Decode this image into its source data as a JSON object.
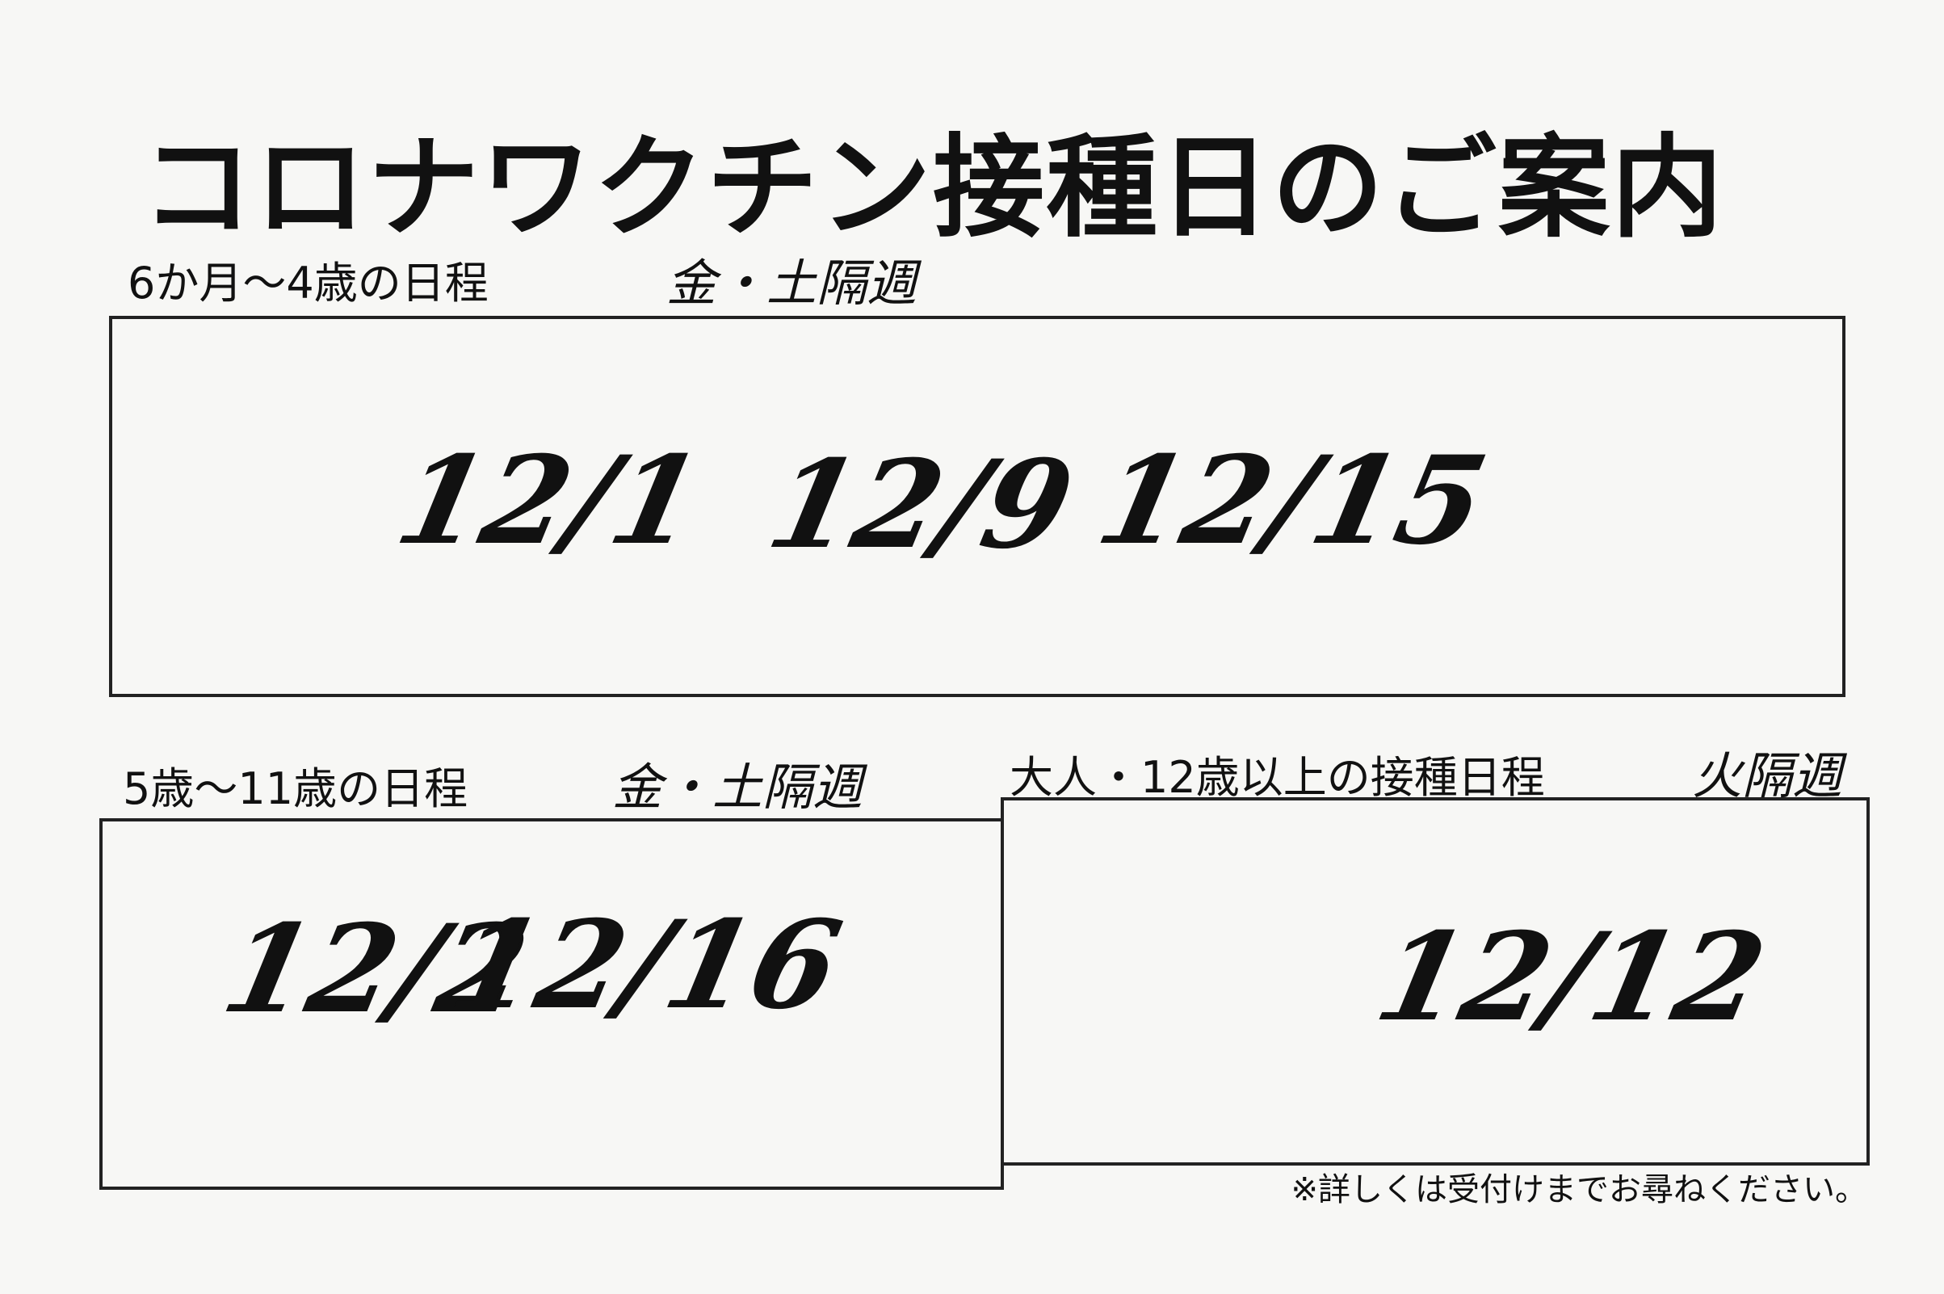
{
  "title": "コロナワクチン接種日のご案内",
  "sections": [
    {
      "label": "6か月〜4歳の日程",
      "note": "金・土隔週",
      "dates": [
        "12/1",
        "12/9",
        "12/15"
      ]
    },
    {
      "label": "5歳〜11歳の日程",
      "note": "金・土隔週",
      "dates": [
        "12/2",
        "12/16"
      ]
    },
    {
      "label": "大人・12歳以上の接種日程",
      "note": "火隔週",
      "dates": [
        "12/12"
      ]
    }
  ],
  "footnote": "※詳しくは受付けまでお尋ねください。"
}
